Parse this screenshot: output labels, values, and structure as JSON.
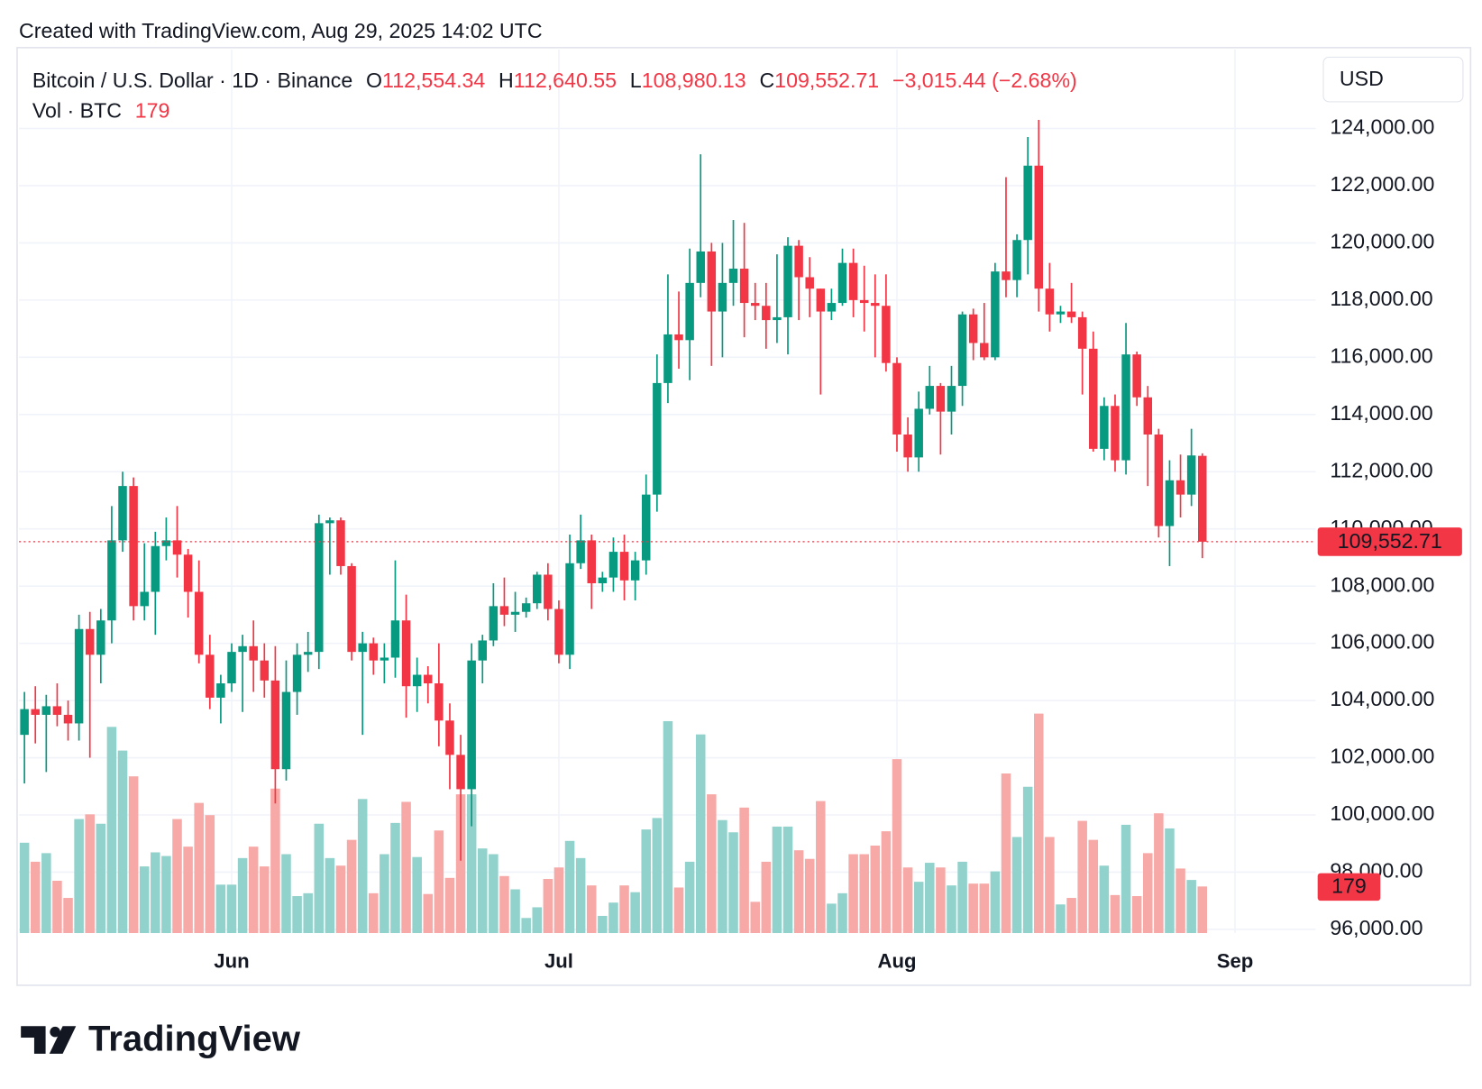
{
  "chart_data": {
    "type": "candlestick",
    "header": "Created with TradingView.com, Aug 29, 2025 14:02 UTC",
    "legend": {
      "symbol": "Bitcoin / U.S. Dollar · 1D · Binance",
      "ohlc_letters": [
        "O",
        "H",
        "L",
        "C"
      ],
      "ohlc_labels": [
        "112,554.34",
        "112,640.55",
        "108,980.13",
        "109,552.71"
      ],
      "change": "−3,015.44 (−2.68%)",
      "volume_title": "Vol · BTC"
    },
    "currency": "USD",
    "brand": "TradingView",
    "up_color": "#089981",
    "down_color": "#f23645",
    "volume_up_color": "#92d2cc",
    "volume_down_color": "#f7a9a7",
    "grid": true,
    "xlim": [
      -0.5,
      118.4
    ],
    "xticks": [
      {
        "value": 19,
        "label": "Jun"
      },
      {
        "value": 49,
        "label": "Jul"
      },
      {
        "value": 80,
        "label": "Aug"
      },
      {
        "value": 111,
        "label": "Sep"
      }
    ],
    "ylim": [
      95870,
      126760
    ],
    "yticks": [
      {
        "value": 96000,
        "label": "96,000.00"
      },
      {
        "value": 98000,
        "label": "98,000.00"
      },
      {
        "value": 100000,
        "label": "100,000.00"
      },
      {
        "value": 102000,
        "label": "102,000.00"
      },
      {
        "value": 104000,
        "label": "104,000.00"
      },
      {
        "value": 106000,
        "label": "106,000.00"
      },
      {
        "value": 108000,
        "label": "108,000.00"
      },
      {
        "value": 110000,
        "label": "110,000.00"
      },
      {
        "value": 112000,
        "label": "112,000.00"
      },
      {
        "value": 114000,
        "label": "114,000.00"
      },
      {
        "value": 116000,
        "label": "116,000.00"
      },
      {
        "value": 118000,
        "label": "118,000.00"
      },
      {
        "value": 120000,
        "label": "120,000.00"
      },
      {
        "value": 122000,
        "label": "122,000.00"
      },
      {
        "value": 124000,
        "label": "124,000.00"
      }
    ],
    "open": [
      102800,
      103700,
      103500,
      103800,
      103500,
      103200,
      106500,
      105600,
      106800,
      109600,
      111500,
      107300,
      107800,
      109400,
      109600,
      109100,
      107800,
      105600,
      104100,
      104600,
      105700,
      105900,
      105400,
      104700,
      101600,
      104300,
      105600,
      105700,
      110200,
      110300,
      108700,
      105700,
      106000,
      105400,
      105500,
      106800,
      104500,
      104900,
      104600,
      103300,
      102100,
      100900,
      105400,
      106100,
      107300,
      107000,
      107100,
      107400,
      108400,
      107200,
      105600,
      108800,
      109600,
      108100,
      108300,
      109200,
      108200,
      108900,
      111200,
      115100,
      116800,
      116600,
      118600,
      119700,
      117600,
      118600,
      119100,
      117900,
      117800,
      117300,
      117400,
      119900,
      118800,
      118400,
      117600,
      117900,
      119300,
      118000,
      117900,
      117800,
      115800,
      113300,
      112500,
      114200,
      115000,
      114100,
      115000,
      117500,
      116500,
      116000,
      119000,
      118700,
      120100,
      122700,
      118400,
      117500,
      117600,
      117400,
      116300,
      112800,
      114300,
      112400,
      116100,
      114600,
      113300,
      110100,
      111700,
      111200,
      112554.34
    ],
    "high": [
      104300,
      104500,
      104200,
      104600,
      104000,
      107000,
      107100,
      107200,
      110800,
      112000,
      111800,
      109500,
      109900,
      110400,
      110800,
      109300,
      108900,
      106300,
      104900,
      106000,
      106300,
      106800,
      106000,
      105900,
      105400,
      106000,
      106400,
      110500,
      110400,
      110400,
      108800,
      106400,
      106200,
      106000,
      108900,
      107700,
      105500,
      105200,
      106000,
      103900,
      102800,
      106000,
      106300,
      108100,
      108300,
      107800,
      107600,
      108500,
      108800,
      107500,
      109800,
      110500,
      109800,
      108500,
      109700,
      109800,
      109200,
      111900,
      116100,
      118900,
      118300,
      119800,
      123100,
      120000,
      120000,
      120800,
      120700,
      118600,
      118600,
      119600,
      120200,
      120100,
      119500,
      118400,
      118400,
      119800,
      119800,
      119200,
      118900,
      118900,
      116000,
      113900,
      114800,
      115700,
      115100,
      115700,
      117600,
      117700,
      117900,
      119300,
      122300,
      120300,
      123700,
      124300,
      119300,
      117800,
      118600,
      117600,
      116900,
      114600,
      114700,
      117200,
      116200,
      115000,
      113500,
      112400,
      112600,
      113500,
      112640.55
    ],
    "low": [
      101100,
      102500,
      101500,
      103100,
      102600,
      102600,
      102000,
      104600,
      106000,
      109200,
      106800,
      106800,
      106300,
      108900,
      108300,
      106900,
      105300,
      103700,
      103200,
      104300,
      103600,
      104300,
      104100,
      100400,
      101200,
      103500,
      105000,
      105100,
      108400,
      108400,
      105400,
      102800,
      104900,
      104600,
      104800,
      103400,
      103600,
      103900,
      102400,
      100900,
      98400,
      99600,
      104600,
      105900,
      106600,
      106400,
      106900,
      107200,
      106800,
      105300,
      105100,
      108600,
      107200,
      107800,
      107800,
      107500,
      107500,
      108400,
      110600,
      114400,
      115600,
      115200,
      118100,
      115700,
      116000,
      117800,
      116700,
      117300,
      116300,
      116500,
      116100,
      117300,
      117400,
      114700,
      117300,
      117800,
      117400,
      116900,
      116000,
      115500,
      112700,
      112000,
      112000,
      114000,
      112600,
      113300,
      114300,
      115900,
      115900,
      115900,
      118100,
      118100,
      118900,
      117600,
      116900,
      117200,
      117200,
      114700,
      112700,
      112400,
      112000,
      111900,
      114300,
      111500,
      109700,
      108700,
      110400,
      110800,
      108980.13
    ],
    "close": [
      103700,
      103500,
      103800,
      103500,
      103200,
      106500,
      105600,
      106800,
      109600,
      111500,
      107300,
      107800,
      109400,
      109600,
      109100,
      107800,
      105600,
      104100,
      104600,
      105700,
      105900,
      105400,
      104700,
      101600,
      104300,
      105600,
      105700,
      110200,
      110300,
      108700,
      105700,
      106000,
      105400,
      105500,
      106800,
      104500,
      104900,
      104600,
      103300,
      102100,
      100900,
      105400,
      106100,
      107300,
      107000,
      107100,
      107400,
      108400,
      107200,
      105600,
      108800,
      109600,
      108100,
      108300,
      109200,
      108200,
      108900,
      111200,
      115100,
      116800,
      116600,
      118600,
      119700,
      117600,
      118600,
      119100,
      117900,
      117800,
      117300,
      117400,
      119900,
      118800,
      118400,
      117600,
      117900,
      119300,
      118000,
      117900,
      117800,
      115800,
      113300,
      112500,
      114200,
      115000,
      114100,
      115000,
      117500,
      116500,
      116000,
      119000,
      118700,
      120100,
      122700,
      118400,
      117500,
      117600,
      117400,
      116300,
      112800,
      114300,
      112400,
      116100,
      114600,
      113300,
      110100,
      111700,
      111200,
      112568.15,
      109552.71
    ],
    "volume": [
      347,
      274,
      307,
      201,
      135,
      438,
      456,
      420,
      792,
      701,
      602,
      256,
      310,
      296,
      438,
      332,
      500,
      453,
      186,
      186,
      288,
      332,
      256,
      555,
      303,
      142,
      153,
      420,
      288,
      259,
      358,
      515,
      153,
      303,
      423,
      504,
      292,
      150,
      394,
      212,
      533,
      533,
      325,
      303,
      219,
      168,
      58,
      99,
      208,
      252,
      354,
      288,
      183,
      66,
      117,
      183,
      157,
      398,
      442,
      814,
      175,
      274,
      763,
      533,
      434,
      387,
      482,
      120,
      274,
      409,
      409,
      318,
      285,
      507,
      113,
      153,
      303,
      303,
      336,
      391,
      668,
      252,
      197,
      270,
      252,
      183,
      274,
      190,
      190,
      237,
      613,
      369,
      562,
      843,
      369,
      110,
      135,
      431,
      358,
      259,
      146,
      416,
      142,
      307,
      460,
      402,
      248,
      204,
      179
    ]
  }
}
